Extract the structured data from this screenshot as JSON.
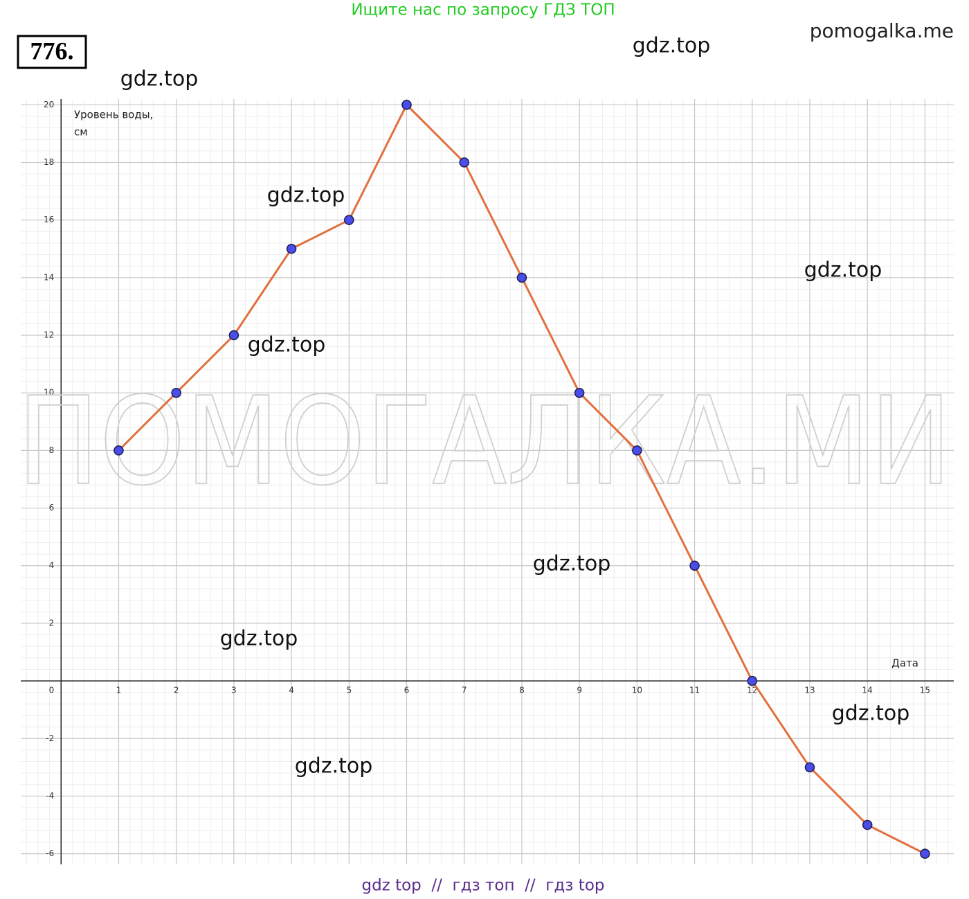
{
  "page": {
    "problem_number": "776.",
    "top_banner": "Ищите нас по запросу ГДЗ ТОП",
    "site": "pomogalka.me",
    "watermarks": [
      "gdz.top",
      "gdz.top",
      "gdz.top",
      "gdz.top",
      "gdz.top",
      "gdz.top",
      "gdz.top",
      "gdz.top",
      "gdz.top"
    ],
    "big_watermark": "ПОМОГАЛКА.МИ",
    "footer": "gdz top  //  гдз топ  //  гдз top"
  },
  "chart_data": {
    "type": "line",
    "y_label": [
      "Уровень воды,",
      "см"
    ],
    "x_label": "Дата",
    "x": [
      1,
      2,
      3,
      4,
      5,
      6,
      7,
      8,
      9,
      10,
      11,
      12,
      13,
      14,
      15
    ],
    "series": [
      {
        "color": "#e2703d",
        "marker_color": "#4b4de8",
        "values": [
          8,
          10,
          12,
          15,
          16,
          20,
          18,
          14,
          10,
          8,
          4,
          0,
          -3,
          -5,
          -6
        ]
      }
    ],
    "xlim": [
      -0.7,
      15.5
    ],
    "ylim": [
      -6.37,
      20.2
    ],
    "xticks": [
      1,
      2,
      3,
      4,
      5,
      6,
      7,
      8,
      9,
      10,
      11,
      12,
      13,
      14,
      15
    ],
    "yticks": [
      -6,
      -4,
      -2,
      0,
      2,
      4,
      6,
      8,
      10,
      12,
      14,
      16,
      18,
      20
    ],
    "grid": true
  }
}
